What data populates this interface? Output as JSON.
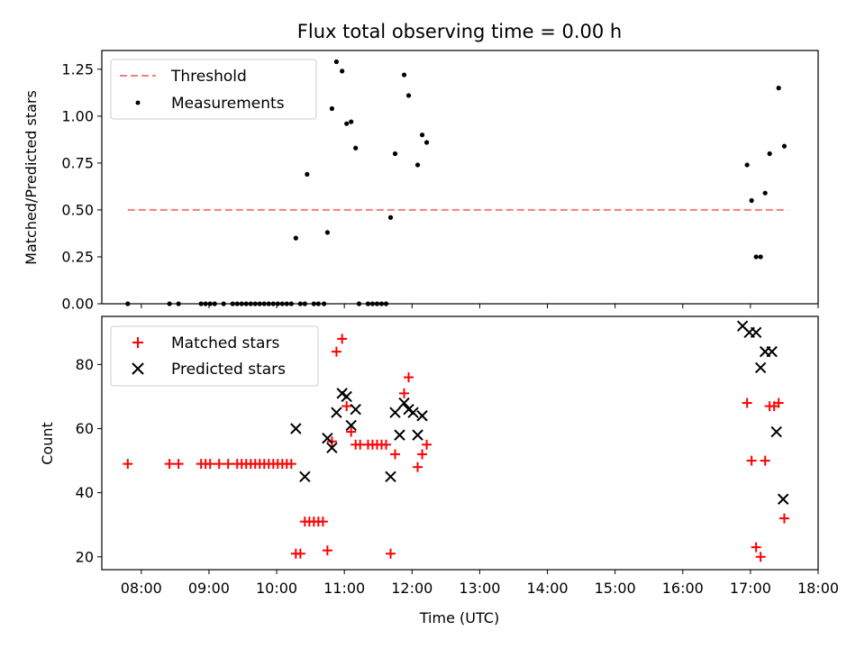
{
  "figure": {
    "title": "Flux total observing time = 0.00 h",
    "xlabel": "Time (UTC)"
  },
  "chart_data": [
    {
      "type": "scatter",
      "panel": "top",
      "ylabel": "Matched/Predicted stars",
      "xlim": [
        "07:25",
        "18:00"
      ],
      "ylim": [
        0,
        1.35
      ],
      "yticks": [
        0.0,
        0.25,
        0.5,
        0.75,
        1.0,
        1.25
      ],
      "ytick_labels": [
        "0.00",
        "0.25",
        "0.50",
        "0.75",
        "1.00",
        "1.25"
      ],
      "legend_position": "top-left",
      "threshold": {
        "name": "Threshold",
        "y": 0.5,
        "x_from": "07:48",
        "x_to": "17:33",
        "color": "#f08080"
      },
      "series": [
        {
          "name": "Measurements",
          "color": "#000000",
          "marker": "dot",
          "points": [
            [
              "07:48",
              0.0
            ],
            [
              "08:25",
              0.0
            ],
            [
              "08:33",
              0.0
            ],
            [
              "08:53",
              0.0
            ],
            [
              "08:57",
              0.0
            ],
            [
              "09:01",
              0.0
            ],
            [
              "09:05",
              0.0
            ],
            [
              "09:13",
              0.0
            ],
            [
              "09:21",
              0.0
            ],
            [
              "09:25",
              0.0
            ],
            [
              "09:29",
              0.0
            ],
            [
              "09:33",
              0.0
            ],
            [
              "09:37",
              0.0
            ],
            [
              "09:41",
              0.0
            ],
            [
              "09:45",
              0.0
            ],
            [
              "09:49",
              0.0
            ],
            [
              "09:53",
              0.0
            ],
            [
              "09:57",
              0.0
            ],
            [
              "10:01",
              0.0
            ],
            [
              "10:05",
              0.0
            ],
            [
              "10:09",
              0.0
            ],
            [
              "10:13",
              0.0
            ],
            [
              "10:17",
              0.35
            ],
            [
              "10:21",
              0.0
            ],
            [
              "10:25",
              0.0
            ],
            [
              "10:27",
              0.69
            ],
            [
              "10:33",
              0.0
            ],
            [
              "10:37",
              0.0
            ],
            [
              "10:42",
              0.0
            ],
            [
              "10:45",
              0.38
            ],
            [
              "10:49",
              1.04
            ],
            [
              "10:53",
              1.29
            ],
            [
              "10:58",
              1.24
            ],
            [
              "11:02",
              0.96
            ],
            [
              "11:06",
              0.97
            ],
            [
              "11:10",
              0.83
            ],
            [
              "11:13",
              0.0
            ],
            [
              "11:21",
              0.0
            ],
            [
              "11:25",
              0.0
            ],
            [
              "11:29",
              0.0
            ],
            [
              "11:33",
              0.0
            ],
            [
              "11:37",
              0.0
            ],
            [
              "11:41",
              0.46
            ],
            [
              "11:45",
              0.8
            ],
            [
              "11:53",
              1.22
            ],
            [
              "11:57",
              1.11
            ],
            [
              "12:05",
              0.74
            ],
            [
              "12:09",
              0.9
            ],
            [
              "12:13",
              0.86
            ],
            [
              "16:57",
              0.74
            ],
            [
              "17:01",
              0.55
            ],
            [
              "17:05",
              0.25
            ],
            [
              "17:09",
              0.25
            ],
            [
              "17:13",
              0.59
            ],
            [
              "17:17",
              0.8
            ],
            [
              "17:25",
              1.15
            ],
            [
              "17:30",
              0.84
            ]
          ]
        }
      ]
    },
    {
      "type": "scatter",
      "panel": "bottom",
      "ylabel": "Count",
      "xlim": [
        "07:25",
        "18:00"
      ],
      "ylim": [
        16,
        95
      ],
      "yticks": [
        20,
        40,
        60,
        80
      ],
      "ytick_labels": [
        "20",
        "40",
        "60",
        "80"
      ],
      "xticks": [
        "08:00",
        "09:00",
        "10:00",
        "11:00",
        "12:00",
        "13:00",
        "14:00",
        "15:00",
        "16:00",
        "17:00",
        "18:00"
      ],
      "legend_position": "top-left",
      "series": [
        {
          "name": "Matched stars",
          "color": "#ff0000",
          "marker": "plus",
          "points": [
            [
              "07:48",
              49
            ],
            [
              "08:25",
              49
            ],
            [
              "08:33",
              49
            ],
            [
              "08:53",
              49
            ],
            [
              "08:57",
              49
            ],
            [
              "09:01",
              49
            ],
            [
              "09:09",
              49
            ],
            [
              "09:17",
              49
            ],
            [
              "09:25",
              49
            ],
            [
              "09:29",
              49
            ],
            [
              "09:33",
              49
            ],
            [
              "09:37",
              49
            ],
            [
              "09:41",
              49
            ],
            [
              "09:45",
              49
            ],
            [
              "09:49",
              49
            ],
            [
              "09:53",
              49
            ],
            [
              "09:57",
              49
            ],
            [
              "10:01",
              49
            ],
            [
              "10:05",
              49
            ],
            [
              "10:09",
              49
            ],
            [
              "10:13",
              49
            ],
            [
              "10:17",
              21
            ],
            [
              "10:21",
              21
            ],
            [
              "10:25",
              31
            ],
            [
              "10:29",
              31
            ],
            [
              "10:33",
              31
            ],
            [
              "10:37",
              31
            ],
            [
              "10:41",
              31
            ],
            [
              "10:45",
              22
            ],
            [
              "10:49",
              56
            ],
            [
              "10:53",
              84
            ],
            [
              "10:58",
              88
            ],
            [
              "11:02",
              67
            ],
            [
              "11:06",
              59
            ],
            [
              "11:10",
              55
            ],
            [
              "11:14",
              55
            ],
            [
              "11:21",
              55
            ],
            [
              "11:25",
              55
            ],
            [
              "11:29",
              55
            ],
            [
              "11:33",
              55
            ],
            [
              "11:37",
              55
            ],
            [
              "11:41",
              21
            ],
            [
              "11:45",
              52
            ],
            [
              "11:53",
              71
            ],
            [
              "11:57",
              76
            ],
            [
              "12:05",
              48
            ],
            [
              "12:09",
              52
            ],
            [
              "12:13",
              55
            ],
            [
              "16:57",
              68
            ],
            [
              "17:01",
              50
            ],
            [
              "17:05",
              23
            ],
            [
              "17:09",
              20
            ],
            [
              "17:13",
              50
            ],
            [
              "17:17",
              67
            ],
            [
              "17:21",
              67
            ],
            [
              "17:25",
              68
            ],
            [
              "17:30",
              32
            ]
          ]
        },
        {
          "name": "Predicted stars",
          "color": "#000000",
          "marker": "x",
          "points": [
            [
              "10:17",
              60
            ],
            [
              "10:25",
              45
            ],
            [
              "10:45",
              57
            ],
            [
              "10:49",
              54
            ],
            [
              "10:53",
              65
            ],
            [
              "10:58",
              71
            ],
            [
              "11:02",
              70
            ],
            [
              "11:06",
              61
            ],
            [
              "11:10",
              66
            ],
            [
              "11:41",
              45
            ],
            [
              "11:45",
              65
            ],
            [
              "11:49",
              58
            ],
            [
              "11:53",
              68
            ],
            [
              "11:57",
              66
            ],
            [
              "12:01",
              65
            ],
            [
              "12:05",
              58
            ],
            [
              "12:09",
              64
            ],
            [
              "16:53",
              92
            ],
            [
              "16:59",
              90
            ],
            [
              "17:05",
              90
            ],
            [
              "17:09",
              79
            ],
            [
              "17:13",
              84
            ],
            [
              "17:19",
              84
            ],
            [
              "17:23",
              59
            ],
            [
              "17:29",
              38
            ]
          ]
        }
      ]
    }
  ]
}
